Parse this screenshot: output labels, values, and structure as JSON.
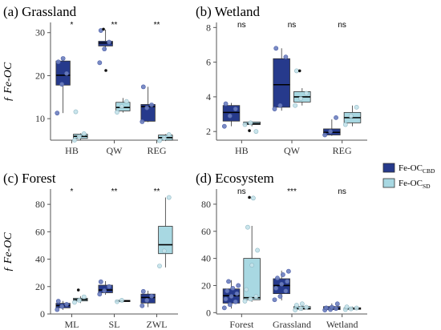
{
  "colors": {
    "cbd": "#263a8c",
    "sd": "#a8d8e2",
    "cbd_point": "#6d7fbf",
    "sd_point": "#c4e2ea",
    "outlier": "#111111",
    "axis": "#555555"
  },
  "legend": {
    "placement": "right",
    "items": [
      {
        "key": "cbd",
        "prefix": "Fe-OC",
        "subscript": "CBD"
      },
      {
        "key": "sd",
        "prefix": "Fe-OC",
        "subscript": "SD"
      }
    ]
  },
  "y_axis_label": "ƒ Fe-OC",
  "chart_data": [
    {
      "type": "box",
      "title": "(a) Grassland",
      "ylabel": "ƒ Fe-OC",
      "ylim": [
        5,
        32
      ],
      "yticks": [
        10,
        20,
        30
      ],
      "categories": [
        "HB",
        "QW",
        "REG"
      ],
      "significance": [
        "*",
        "**",
        "**"
      ],
      "series": [
        {
          "name": "Fe-OC CBD",
          "boxes": [
            {
              "whislo": 11.3,
              "q1": 17.8,
              "med": 20.1,
              "q3": 23.4,
              "whishi": 24.0,
              "points": [
                11.3,
                18.0,
                20.5,
                23.2,
                24.0
              ],
              "outliers": []
            },
            {
              "whislo": 25.8,
              "q1": 26.9,
              "med": 27.6,
              "q3": 28.0,
              "whishi": 30.7,
              "points": [
                23.0,
                26.2,
                27.8,
                30.5
              ],
              "outliers": [
                30.8,
                21.2
              ]
            },
            {
              "whislo": 9.2,
              "q1": 9.4,
              "med": 12.8,
              "q3": 13.3,
              "whishi": 17.4,
              "points": [
                9.3,
                12.5,
                13.2,
                17.4
              ],
              "outliers": []
            }
          ]
        },
        {
          "name": "Fe-OC SD",
          "boxes": [
            {
              "whislo": 5.0,
              "q1": 5.4,
              "med": 5.9,
              "q3": 6.4,
              "whishi": 6.6,
              "points": [
                5.0,
                5.8,
                6.5,
                11.6
              ],
              "outliers": []
            },
            {
              "whislo": 11.4,
              "q1": 11.8,
              "med": 12.6,
              "q3": 13.8,
              "whishi": 14.8,
              "points": [
                11.5,
                12.8,
                14.0
              ],
              "outliers": []
            },
            {
              "whislo": 4.8,
              "q1": 5.0,
              "med": 5.6,
              "q3": 6.2,
              "whishi": 6.4,
              "points": [
                4.9,
                5.5,
                6.3
              ],
              "outliers": []
            }
          ]
        }
      ]
    },
    {
      "type": "box",
      "title": "(b) Wetland",
      "ylabel": "",
      "ylim": [
        1.5,
        8.2
      ],
      "yticks": [
        2,
        4,
        6,
        8
      ],
      "categories": [
        "HB",
        "QW",
        "REG"
      ],
      "significance": [
        "ns",
        "ns",
        "ns"
      ],
      "series": [
        {
          "name": "Fe-OC CBD",
          "boxes": [
            {
              "whislo": 2.3,
              "q1": 2.6,
              "med": 3.1,
              "q3": 3.5,
              "whishi": 3.65,
              "points": [
                2.3,
                2.9,
                3.3,
                3.6
              ],
              "outliers": []
            },
            {
              "whislo": 3.2,
              "q1": 3.4,
              "med": 4.7,
              "q3": 6.2,
              "whishi": 6.8,
              "points": [
                3.3,
                3.5,
                6.3,
                6.8
              ],
              "outliers": []
            },
            {
              "whislo": 1.75,
              "q1": 1.8,
              "med": 1.95,
              "q3": 2.15,
              "whishi": 2.7,
              "points": [
                1.8,
                2.0,
                2.8
              ],
              "outliers": []
            }
          ]
        },
        {
          "name": "Fe-OC SD",
          "boxes": [
            {
              "whislo": 2.3,
              "q1": 2.4,
              "med": 2.45,
              "q3": 2.55,
              "whishi": 2.6,
              "points": [
                2.4,
                2.5,
                2.0
              ],
              "outliers": [
                2.05
              ]
            },
            {
              "whislo": 3.5,
              "q1": 3.7,
              "med": 4.0,
              "q3": 4.3,
              "whishi": 4.5,
              "points": [
                3.5,
                3.9,
                4.2,
                5.5
              ],
              "outliers": [
                5.5
              ]
            },
            {
              "whislo": 2.3,
              "q1": 2.5,
              "med": 2.8,
              "q3": 3.1,
              "whishi": 3.5,
              "points": [
                2.4,
                2.9,
                3.4
              ],
              "outliers": []
            }
          ]
        }
      ]
    },
    {
      "type": "box",
      "title": "(c) Forest",
      "ylabel": "ƒ Fe-OC",
      "ylim": [
        0,
        90
      ],
      "yticks": [
        0,
        20,
        40,
        60,
        80
      ],
      "categories": [
        "ML",
        "SL",
        "ZWL"
      ],
      "significance": [
        "*",
        "**",
        "**"
      ],
      "series": [
        {
          "name": "Fe-OC CBD",
          "boxes": [
            {
              "whislo": 3.0,
              "q1": 4.5,
              "med": 6.2,
              "q3": 7.8,
              "whishi": 9.5,
              "points": [
                3.2,
                5.5,
                7.0,
                9.3
              ],
              "outliers": []
            },
            {
              "whislo": 14.0,
              "q1": 15.5,
              "med": 17.5,
              "q3": 21.0,
              "whishi": 24.0,
              "points": [
                14.5,
                17.0,
                20.0,
                23.5
              ],
              "outliers": []
            },
            {
              "whislo": 5.0,
              "q1": 8.0,
              "med": 12.0,
              "q3": 14.5,
              "whishi": 17.0,
              "points": [
                6.0,
                10.0,
                13.0,
                16.5
              ],
              "outliers": []
            }
          ]
        },
        {
          "name": "Fe-OC SD",
          "boxes": [
            {
              "whislo": 8.0,
              "q1": 9.5,
              "med": 10.5,
              "q3": 11.5,
              "whishi": 13.0,
              "points": [
                8.5,
                10.0,
                12.5
              ],
              "outliers": [
                17.5
              ]
            },
            {
              "whislo": 8.5,
              "q1": 9.0,
              "med": 9.5,
              "q3": 10.0,
              "whishi": 10.5,
              "points": [
                9.0,
                10.0
              ],
              "outliers": []
            },
            {
              "whislo": 34.0,
              "q1": 44.0,
              "med": 50.5,
              "q3": 64.0,
              "whishi": 85.0,
              "points": [
                35.0,
                46.0,
                85.0
              ],
              "outliers": []
            }
          ]
        }
      ]
    },
    {
      "type": "box",
      "title": "(d) Ecosystem",
      "ylabel": "",
      "ylim": [
        -1,
        90
      ],
      "yticks": [
        0,
        20,
        40,
        60,
        80
      ],
      "categories": [
        "Forest",
        "Grassland",
        "Wetland"
      ],
      "significance": [
        "ns",
        "***",
        "ns"
      ],
      "series": [
        {
          "name": "Fe-OC CBD",
          "boxes": [
            {
              "whislo": 3.0,
              "q1": 7.0,
              "med": 12.5,
              "q3": 17.5,
              "whishi": 24.0,
              "points": [
                3.5,
                6.0,
                8.0,
                10.0,
                12.0,
                14.0,
                16.0,
                18.0,
                20.0,
                23.0
              ],
              "outliers": []
            },
            {
              "whislo": 9.0,
              "q1": 14.0,
              "med": 20.0,
              "q3": 25.0,
              "whishi": 31.0,
              "points": [
                9.5,
                12.0,
                16.0,
                18.0,
                21.0,
                23.0,
                25.5,
                28.0,
                30.5
              ],
              "outliers": []
            },
            {
              "whislo": 1.8,
              "q1": 2.2,
              "med": 3.0,
              "q3": 4.5,
              "whishi": 6.8,
              "points": [
                1.9,
                2.3,
                3.0,
                3.5,
                4.0,
                6.5
              ],
              "outliers": []
            }
          ]
        },
        {
          "name": "Fe-OC SD",
          "boxes": [
            {
              "whislo": 8.0,
              "q1": 9.5,
              "med": 11.0,
              "q3": 40.0,
              "whishi": 64.0,
              "points": [
                8.5,
                10.0,
                12.0,
                17.0,
                35.0,
                46.0,
                63.0,
                84.5
              ],
              "outliers": [
                85.0
              ]
            },
            {
              "whislo": 1.5,
              "q1": 2.5,
              "med": 3.0,
              "q3": 4.5,
              "whishi": 6.0,
              "points": [
                2.0,
                3.0,
                4.0,
                5.5,
                6.5
              ],
              "outliers": []
            },
            {
              "whislo": 2.0,
              "q1": 2.4,
              "med": 3.0,
              "q3": 3.6,
              "whishi": 4.5,
              "points": [
                2.3,
                2.8,
                3.4,
                4.2
              ],
              "outliers": []
            }
          ]
        }
      ]
    }
  ]
}
